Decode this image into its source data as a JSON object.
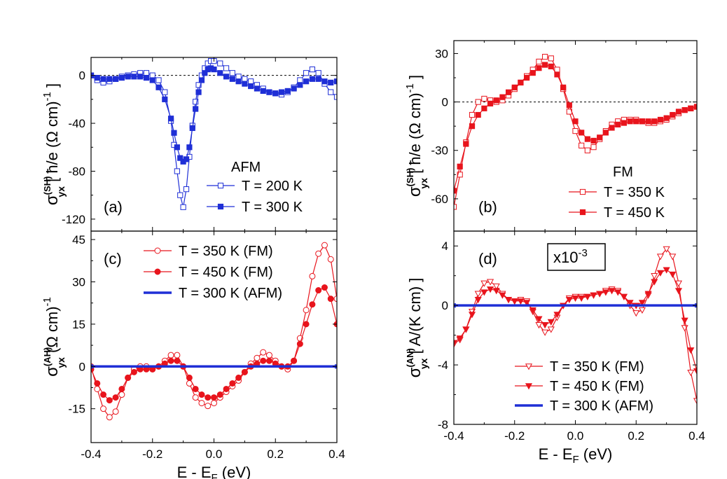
{
  "chart_data": [
    {
      "panel": "(a)",
      "type": "line",
      "title": "",
      "ylabel_main": "σ",
      "ylabel_sup": "(SH)",
      "ylabel_sub": "yx",
      "ylabel_unit": "[ ħ/e (Ω cm)",
      "ylabel_unit_sup": "-1",
      "ylabel_unit_end": " ]",
      "xlim": [
        -0.4,
        0.4
      ],
      "ylim": [
        -130,
        15
      ],
      "yticks": [
        "0",
        "-40",
        "-80",
        "-120"
      ],
      "ytick_values": [
        0,
        -40,
        -80,
        -120
      ],
      "zero_line": true,
      "legend_title": "AFM",
      "series": [
        {
          "name": "T = 200 K",
          "color": "#1f2fd6",
          "marker": "open-square",
          "x": [
            -0.4,
            -0.38,
            -0.36,
            -0.34,
            -0.32,
            -0.3,
            -0.28,
            -0.26,
            -0.24,
            -0.22,
            -0.2,
            -0.18,
            -0.16,
            -0.14,
            -0.13,
            -0.12,
            -0.11,
            -0.1,
            -0.09,
            -0.08,
            -0.07,
            -0.06,
            -0.05,
            -0.04,
            -0.03,
            -0.02,
            -0.01,
            0.0,
            0.02,
            0.04,
            0.06,
            0.08,
            0.1,
            0.12,
            0.14,
            0.16,
            0.18,
            0.2,
            0.22,
            0.24,
            0.26,
            0.28,
            0.3,
            0.32,
            0.34,
            0.36,
            0.38,
            0.4
          ],
          "y": [
            0,
            -4,
            -6,
            -5,
            -3,
            -1,
            0,
            1,
            2,
            2,
            0,
            -4,
            -14,
            -38,
            -58,
            -80,
            -100,
            -110,
            -95,
            -68,
            -42,
            -22,
            -8,
            0,
            6,
            10,
            12,
            12,
            10,
            6,
            2,
            -1,
            -3,
            -5,
            -8,
            -11,
            -14,
            -15,
            -16,
            -14,
            -10,
            -4,
            2,
            5,
            2,
            -7,
            -14,
            -18
          ]
        },
        {
          "name": "T = 300 K",
          "color": "#1f2fd6",
          "marker": "filled-square",
          "x": [
            -0.4,
            -0.38,
            -0.36,
            -0.34,
            -0.32,
            -0.3,
            -0.28,
            -0.26,
            -0.24,
            -0.22,
            -0.2,
            -0.18,
            -0.16,
            -0.14,
            -0.13,
            -0.12,
            -0.11,
            -0.1,
            -0.09,
            -0.08,
            -0.07,
            -0.06,
            -0.05,
            -0.04,
            -0.03,
            -0.02,
            -0.01,
            0.0,
            0.02,
            0.04,
            0.06,
            0.08,
            0.1,
            0.12,
            0.14,
            0.16,
            0.18,
            0.2,
            0.22,
            0.24,
            0.26,
            0.28,
            0.3,
            0.32,
            0.34,
            0.36,
            0.38,
            0.4
          ],
          "y": [
            0,
            -2,
            -3,
            -3,
            -3,
            -2,
            -1,
            -1,
            -1,
            -2,
            -4,
            -10,
            -20,
            -36,
            -48,
            -60,
            -69,
            -72,
            -70,
            -60,
            -44,
            -28,
            -14,
            -4,
            2,
            5,
            6,
            5,
            2,
            -1,
            -3,
            -5,
            -7,
            -9,
            -11,
            -13,
            -14,
            -15,
            -14,
            -13,
            -11,
            -8,
            -5,
            -3,
            -3,
            -5,
            -6,
            -5
          ]
        }
      ]
    },
    {
      "panel": "(b)",
      "type": "line",
      "title": "",
      "ylabel_main": "σ",
      "ylabel_sup": "(SH)",
      "ylabel_sub": "yx",
      "ylabel_unit": "[ ħ/e (Ω cm)",
      "ylabel_unit_sup": "-1",
      "ylabel_unit_end": " ]",
      "xlim": [
        -0.4,
        0.4
      ],
      "ylim": [
        -80,
        38
      ],
      "yticks": [
        "30",
        "0",
        "-30",
        "-60"
      ],
      "ytick_values": [
        30,
        0,
        -30,
        -60
      ],
      "zero_line": true,
      "legend_title": "FM",
      "series": [
        {
          "name": "T = 350 K",
          "color": "#e8141c",
          "marker": "open-square",
          "x": [
            -0.4,
            -0.38,
            -0.36,
            -0.34,
            -0.32,
            -0.3,
            -0.28,
            -0.26,
            -0.24,
            -0.22,
            -0.2,
            -0.18,
            -0.16,
            -0.14,
            -0.12,
            -0.1,
            -0.08,
            -0.06,
            -0.04,
            -0.02,
            0.0,
            0.02,
            0.04,
            0.06,
            0.08,
            0.1,
            0.12,
            0.14,
            0.16,
            0.18,
            0.2,
            0.22,
            0.24,
            0.26,
            0.28,
            0.3,
            0.32,
            0.34,
            0.36,
            0.38,
            0.4
          ],
          "y": [
            -65,
            -45,
            -25,
            -8,
            0,
            2,
            1,
            0,
            1,
            4,
            8,
            12,
            16,
            20,
            25,
            28,
            27,
            20,
            8,
            -6,
            -18,
            -27,
            -30,
            -28,
            -23,
            -18,
            -14,
            -12,
            -11,
            -11,
            -11,
            -12,
            -13,
            -13,
            -12,
            -11,
            -9,
            -7,
            -5,
            -4,
            -3
          ]
        },
        {
          "name": "T = 450 K",
          "color": "#e8141c",
          "marker": "filled-square",
          "x": [
            -0.4,
            -0.38,
            -0.36,
            -0.34,
            -0.32,
            -0.3,
            -0.28,
            -0.26,
            -0.24,
            -0.22,
            -0.2,
            -0.18,
            -0.16,
            -0.14,
            -0.12,
            -0.1,
            -0.08,
            -0.06,
            -0.04,
            -0.02,
            0.0,
            0.02,
            0.04,
            0.06,
            0.08,
            0.1,
            0.12,
            0.14,
            0.16,
            0.18,
            0.2,
            0.22,
            0.24,
            0.26,
            0.28,
            0.3,
            0.32,
            0.34,
            0.36,
            0.38,
            0.4
          ],
          "y": [
            -55,
            -40,
            -26,
            -15,
            -8,
            -4,
            -1,
            1,
            3,
            6,
            9,
            12,
            15,
            18,
            21,
            23,
            22,
            17,
            9,
            -2,
            -12,
            -19,
            -23,
            -24,
            -22,
            -19,
            -16,
            -14,
            -13,
            -12,
            -12,
            -12,
            -12,
            -12,
            -11,
            -10,
            -8,
            -6,
            -5,
            -4,
            -3
          ]
        }
      ]
    },
    {
      "panel": "(c)",
      "type": "line",
      "title": "",
      "ylabel_main": "σ",
      "ylabel_sup": "(AH)",
      "ylabel_sub": "yx",
      "ylabel_unit": "(Ω cm)",
      "ylabel_unit_sup": "-1",
      "ylabel_unit_end": "",
      "xlabel": "E - E",
      "xlabel_sub": "F",
      "xlabel_unit": " (eV)",
      "xlim": [
        -0.4,
        0.4
      ],
      "ylim": [
        -27,
        48
      ],
      "xticks": [
        "-0.4",
        "-0.2",
        "0.0",
        "0.2",
        "0.4"
      ],
      "xtick_values": [
        -0.4,
        -0.2,
        0.0,
        0.2,
        0.4
      ],
      "yticks": [
        "45",
        "30",
        "15",
        "0",
        "-15"
      ],
      "ytick_values": [
        45,
        30,
        15,
        0,
        -15
      ],
      "zero_line": false,
      "legend_title": "",
      "series": [
        {
          "name": "T = 350 K (FM)",
          "color": "#e8141c",
          "marker": "open-circle",
          "x": [
            -0.4,
            -0.38,
            -0.36,
            -0.34,
            -0.32,
            -0.3,
            -0.28,
            -0.26,
            -0.24,
            -0.22,
            -0.2,
            -0.18,
            -0.16,
            -0.14,
            -0.12,
            -0.1,
            -0.08,
            -0.06,
            -0.04,
            -0.02,
            0.0,
            0.02,
            0.04,
            0.06,
            0.08,
            0.1,
            0.12,
            0.14,
            0.16,
            0.18,
            0.2,
            0.22,
            0.24,
            0.26,
            0.28,
            0.3,
            0.32,
            0.34,
            0.36,
            0.38,
            0.4
          ],
          "y": [
            0,
            -8,
            -15,
            -18,
            -16,
            -10,
            -4,
            -1,
            0,
            0,
            -1,
            0,
            2,
            4,
            4,
            0,
            -6,
            -11,
            -13,
            -14,
            -13,
            -11,
            -9,
            -7,
            -5,
            -2,
            1,
            3,
            5,
            4,
            2,
            0,
            -1,
            2,
            10,
            20,
            32,
            40,
            43,
            38,
            24
          ]
        },
        {
          "name": "T = 450 K (FM)",
          "color": "#e8141c",
          "marker": "filled-circle",
          "x": [
            -0.4,
            -0.38,
            -0.36,
            -0.34,
            -0.32,
            -0.3,
            -0.28,
            -0.26,
            -0.24,
            -0.22,
            -0.2,
            -0.18,
            -0.16,
            -0.14,
            -0.12,
            -0.1,
            -0.08,
            -0.06,
            -0.04,
            -0.02,
            0.0,
            0.02,
            0.04,
            0.06,
            0.08,
            0.1,
            0.12,
            0.14,
            0.16,
            0.18,
            0.2,
            0.22,
            0.24,
            0.26,
            0.28,
            0.3,
            0.32,
            0.34,
            0.36,
            0.38,
            0.4
          ],
          "y": [
            -1,
            -6,
            -10,
            -12,
            -11,
            -8,
            -4,
            -2,
            -1,
            -1,
            -1,
            0,
            1,
            2,
            2,
            0,
            -4,
            -8,
            -10,
            -11,
            -11,
            -10,
            -8,
            -6,
            -4,
            -2,
            0,
            1,
            2,
            2,
            1,
            0,
            0,
            2,
            8,
            15,
            22,
            27,
            28,
            24,
            15
          ]
        },
        {
          "name": "T = 300 K (AFM)",
          "color": "#1f2fd6",
          "marker": "line",
          "x": [
            -0.4,
            0.4
          ],
          "y": [
            0,
            0
          ]
        }
      ]
    },
    {
      "panel": "(d)",
      "type": "line",
      "title": "",
      "ylabel_main": "σ",
      "ylabel_sup": "(AN)",
      "ylabel_sub": "yx",
      "ylabel_unit": "[ A/(K cm) ]",
      "ylabel_unit_sup": "",
      "ylabel_unit_end": "",
      "xlabel": "E - E",
      "xlabel_sub": "F",
      "xlabel_unit": " (eV)",
      "annotation": "x10",
      "annotation_sup": "-3",
      "xlim": [
        -0.4,
        0.4
      ],
      "ylim": [
        -8,
        5
      ],
      "xticks": [
        "-0.4",
        "-0.2",
        "0.0",
        "0.2",
        "0.4"
      ],
      "xtick_values": [
        -0.4,
        -0.2,
        0.0,
        0.2,
        0.4
      ],
      "yticks": [
        "4",
        "0",
        "-4",
        "-8"
      ],
      "ytick_values": [
        4,
        0,
        -4,
        -8
      ],
      "zero_line": false,
      "legend_title": "",
      "series": [
        {
          "name": "T = 350 K (FM)",
          "color": "#e8141c",
          "marker": "open-triangle-down",
          "x": [
            -0.4,
            -0.38,
            -0.36,
            -0.34,
            -0.32,
            -0.3,
            -0.28,
            -0.26,
            -0.24,
            -0.22,
            -0.2,
            -0.18,
            -0.16,
            -0.14,
            -0.12,
            -0.1,
            -0.08,
            -0.06,
            -0.04,
            -0.02,
            0.0,
            0.02,
            0.04,
            0.06,
            0.08,
            0.1,
            0.12,
            0.14,
            0.16,
            0.18,
            0.2,
            0.22,
            0.24,
            0.26,
            0.28,
            0.3,
            0.32,
            0.34,
            0.36,
            0.38,
            0.4
          ],
          "y": [
            -2.6,
            -2.3,
            -1.6,
            -0.4,
            0.8,
            1.5,
            1.6,
            1.3,
            0.8,
            0.4,
            0.3,
            0.4,
            0.3,
            -0.4,
            -1.3,
            -1.8,
            -1.6,
            -0.8,
            0.0,
            0.5,
            0.6,
            0.6,
            0.6,
            0.7,
            0.8,
            1.0,
            1.1,
            1.0,
            0.6,
            0.0,
            -0.5,
            -0.3,
            0.7,
            2.0,
            3.3,
            3.8,
            3.3,
            1.5,
            -1.5,
            -4.5,
            -6.4
          ]
        },
        {
          "name": "T = 450 K (FM)",
          "color": "#e8141c",
          "marker": "filled-triangle-down",
          "x": [
            -0.4,
            -0.38,
            -0.36,
            -0.34,
            -0.32,
            -0.3,
            -0.28,
            -0.26,
            -0.24,
            -0.22,
            -0.2,
            -0.18,
            -0.16,
            -0.14,
            -0.12,
            -0.1,
            -0.08,
            -0.06,
            -0.04,
            -0.02,
            0.0,
            0.02,
            0.04,
            0.06,
            0.08,
            0.1,
            0.12,
            0.14,
            0.16,
            0.18,
            0.2,
            0.22,
            0.24,
            0.26,
            0.28,
            0.3,
            0.32,
            0.34,
            0.36,
            0.38,
            0.4
          ],
          "y": [
            -2.5,
            -2.2,
            -1.6,
            -0.6,
            0.4,
            0.9,
            1.1,
            1.0,
            0.7,
            0.4,
            0.3,
            0.3,
            0.2,
            -0.3,
            -0.9,
            -1.3,
            -1.1,
            -0.6,
            0.0,
            0.4,
            0.5,
            0.5,
            0.6,
            0.7,
            0.8,
            0.9,
            1.0,
            0.9,
            0.6,
            0.2,
            0.0,
            0.2,
            0.8,
            1.6,
            2.2,
            2.4,
            2.1,
            1.0,
            -1.0,
            -3.0,
            -4.4
          ]
        },
        {
          "name": "T = 300 K (AFM)",
          "color": "#1f2fd6",
          "marker": "line",
          "x": [
            -0.4,
            0.4
          ],
          "y": [
            0,
            0
          ]
        }
      ]
    }
  ]
}
